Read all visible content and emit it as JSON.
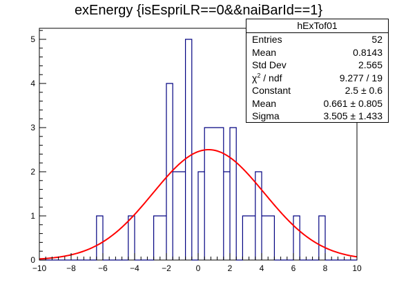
{
  "chart_data": {
    "type": "histogram",
    "title": "exEnergy {isEspriLR==0&&naiBarId==1}",
    "xlabel": "",
    "ylabel": "",
    "xlim": [
      -10,
      10
    ],
    "ylim": [
      0,
      5.25
    ],
    "xticks": [
      "−10",
      "−8",
      "−6",
      "−4",
      "−2",
      "0",
      "2",
      "4",
      "6",
      "8",
      "10"
    ],
    "yticks": [
      "0",
      "1",
      "2",
      "3",
      "4",
      "5"
    ],
    "bin_width": 0.4,
    "bins": [
      {
        "x0": -6.4,
        "x1": -6.0,
        "count": 1
      },
      {
        "x0": -4.4,
        "x1": -4.0,
        "count": 1
      },
      {
        "x0": -2.8,
        "x1": -2.0,
        "count": 1
      },
      {
        "x0": -2.0,
        "x1": -1.6,
        "count": 4
      },
      {
        "x0": -1.6,
        "x1": -0.8,
        "count": 2
      },
      {
        "x0": -0.8,
        "x1": -0.4,
        "count": 5
      },
      {
        "x0": 0.0,
        "x1": 0.4,
        "count": 2
      },
      {
        "x0": 0.4,
        "x1": 1.6,
        "count": 3
      },
      {
        "x0": 1.6,
        "x1": 2.0,
        "count": 2
      },
      {
        "x0": 2.0,
        "x1": 2.4,
        "count": 3
      },
      {
        "x0": 2.8,
        "x1": 3.6,
        "count": 1
      },
      {
        "x0": 3.6,
        "x1": 4.0,
        "count": 2
      },
      {
        "x0": 4.0,
        "x1": 4.8,
        "count": 1
      },
      {
        "x0": 6.0,
        "x1": 6.4,
        "count": 1
      },
      {
        "x0": 7.6,
        "x1": 8.0,
        "count": 1
      }
    ],
    "fit": {
      "function": "gaus",
      "constant": 2.5,
      "mean": 0.661,
      "sigma": 3.505
    },
    "colors": {
      "histogram": "#000080",
      "fit": "#ff0000",
      "axis": "#000000"
    }
  },
  "stats_box": {
    "name": "hExTof01",
    "rows": [
      {
        "label": "Entries",
        "value": "52"
      },
      {
        "label": "Mean",
        "value": "0.8143"
      },
      {
        "label": "Std Dev",
        "value": "2.565"
      },
      {
        "label": "chi2 / ndf",
        "value": "9.277 / 19"
      },
      {
        "label": "Constant",
        "value": "2.5 ± 0.6"
      },
      {
        "label": "Mean",
        "value": "0.661 ± 0.805"
      },
      {
        "label": "Sigma",
        "value": "3.505 ± 1.433"
      }
    ]
  }
}
